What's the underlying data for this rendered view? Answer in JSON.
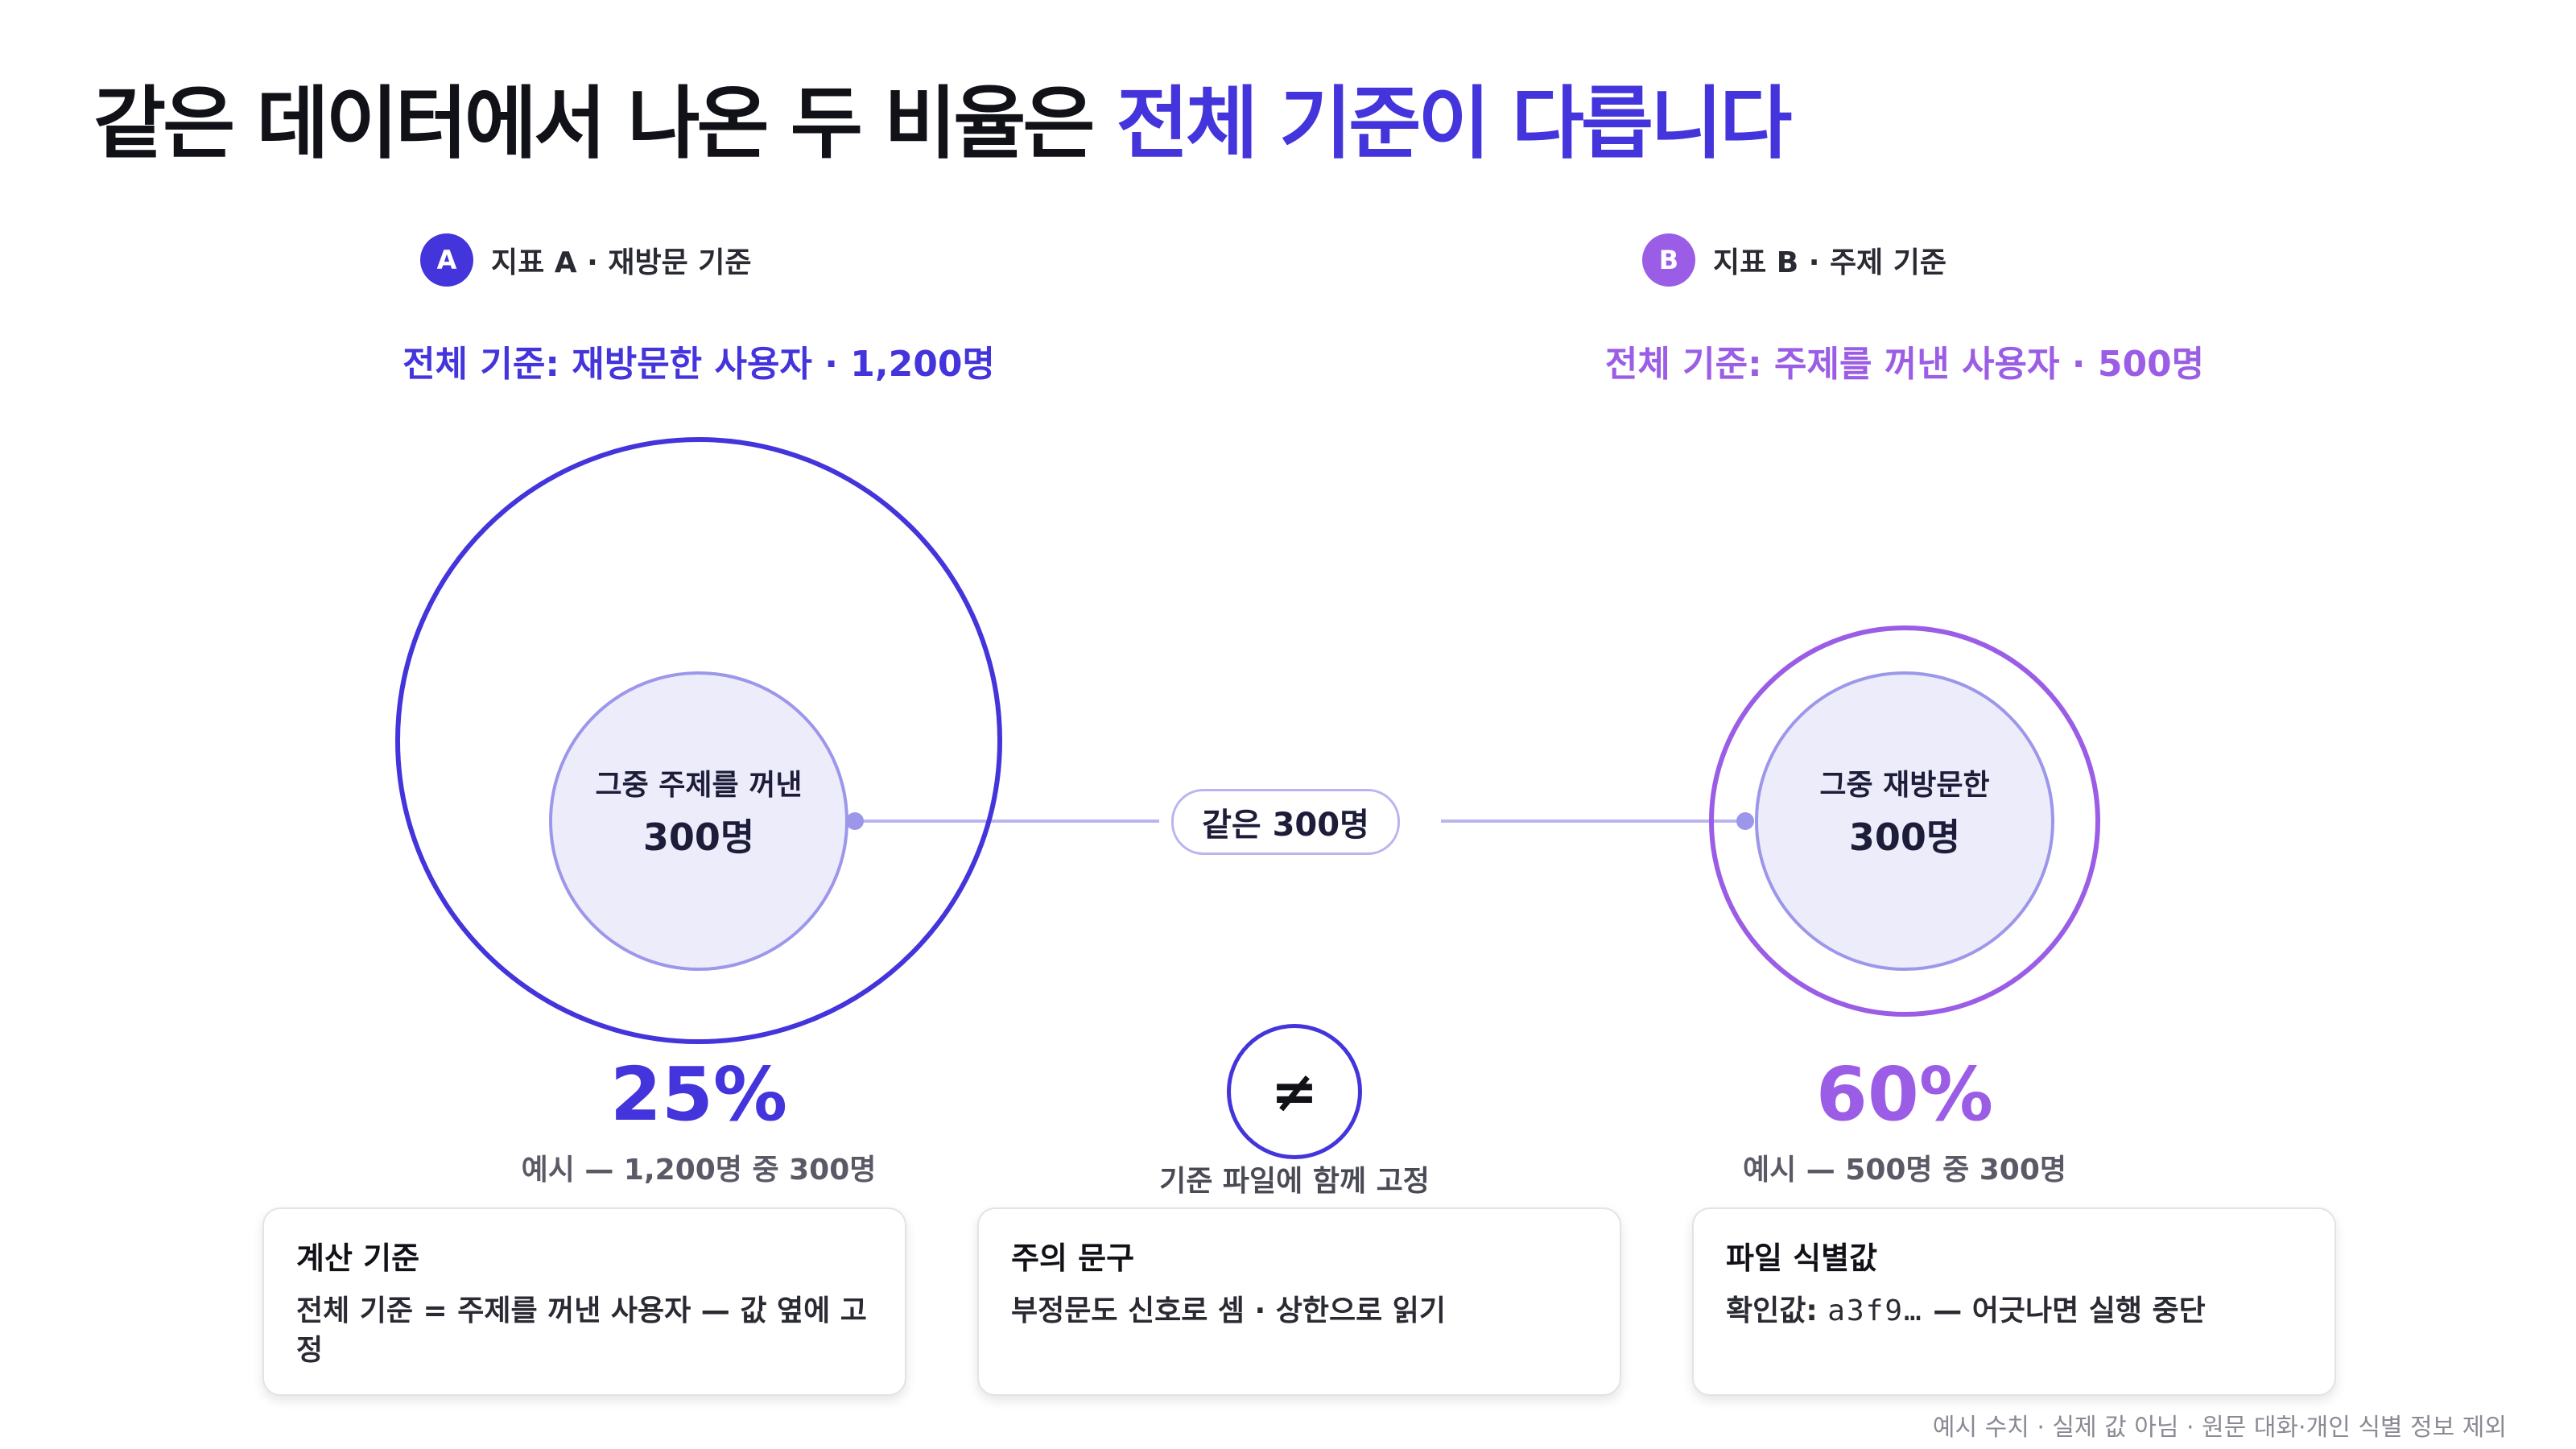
{
  "title": {
    "main": "같은 데이터에서 나온 두 비율은 ",
    "accent": "전체 기준이 다릅니다"
  },
  "colors": {
    "indigo": "#4434db",
    "violet": "#9b5de5",
    "fill": "#ececfb",
    "inner_stroke": "#9c97ea",
    "link": "#b9b6ef"
  },
  "metric_a": {
    "badge": "A",
    "label": "지표 A · 재방문 기준",
    "basis": "전체 기준: 재방문한 사용자 · 1,200명",
    "inner_sub": "그중 주제를 꺼낸",
    "inner_num": "300명",
    "percent": "25%",
    "example": "예시 — 1,200명 중 300명"
  },
  "metric_b": {
    "badge": "B",
    "label": "지표 B · 주제 기준",
    "basis": "전체 기준: 주제를 꺼낸 사용자 · 500명",
    "inner_sub": "그중 재방문한",
    "inner_num": "300명",
    "percent": "60%",
    "example": "예시 — 500명 중 300명"
  },
  "link_label": "같은 300명",
  "neq": {
    "symbol": "≠",
    "caption": "기준 파일에 함께 고정"
  },
  "cards": [
    {
      "title": "계산 기준",
      "body": "전체 기준 = 주제를 꺼낸 사용자 — 값 옆에 고정"
    },
    {
      "title": "주의 문구",
      "body": "부정문도 신호로 셈 · 상한으로 읽기"
    },
    {
      "title": "파일 식별값",
      "body_prefix": "확인값: ",
      "code": "a3f9…",
      "body_suffix": " — 어긋나면 실행 중단"
    }
  ],
  "footnote": "예시 수치 · 실제 값 아님 · 원문 대화·개인 식별 정보 제외"
}
